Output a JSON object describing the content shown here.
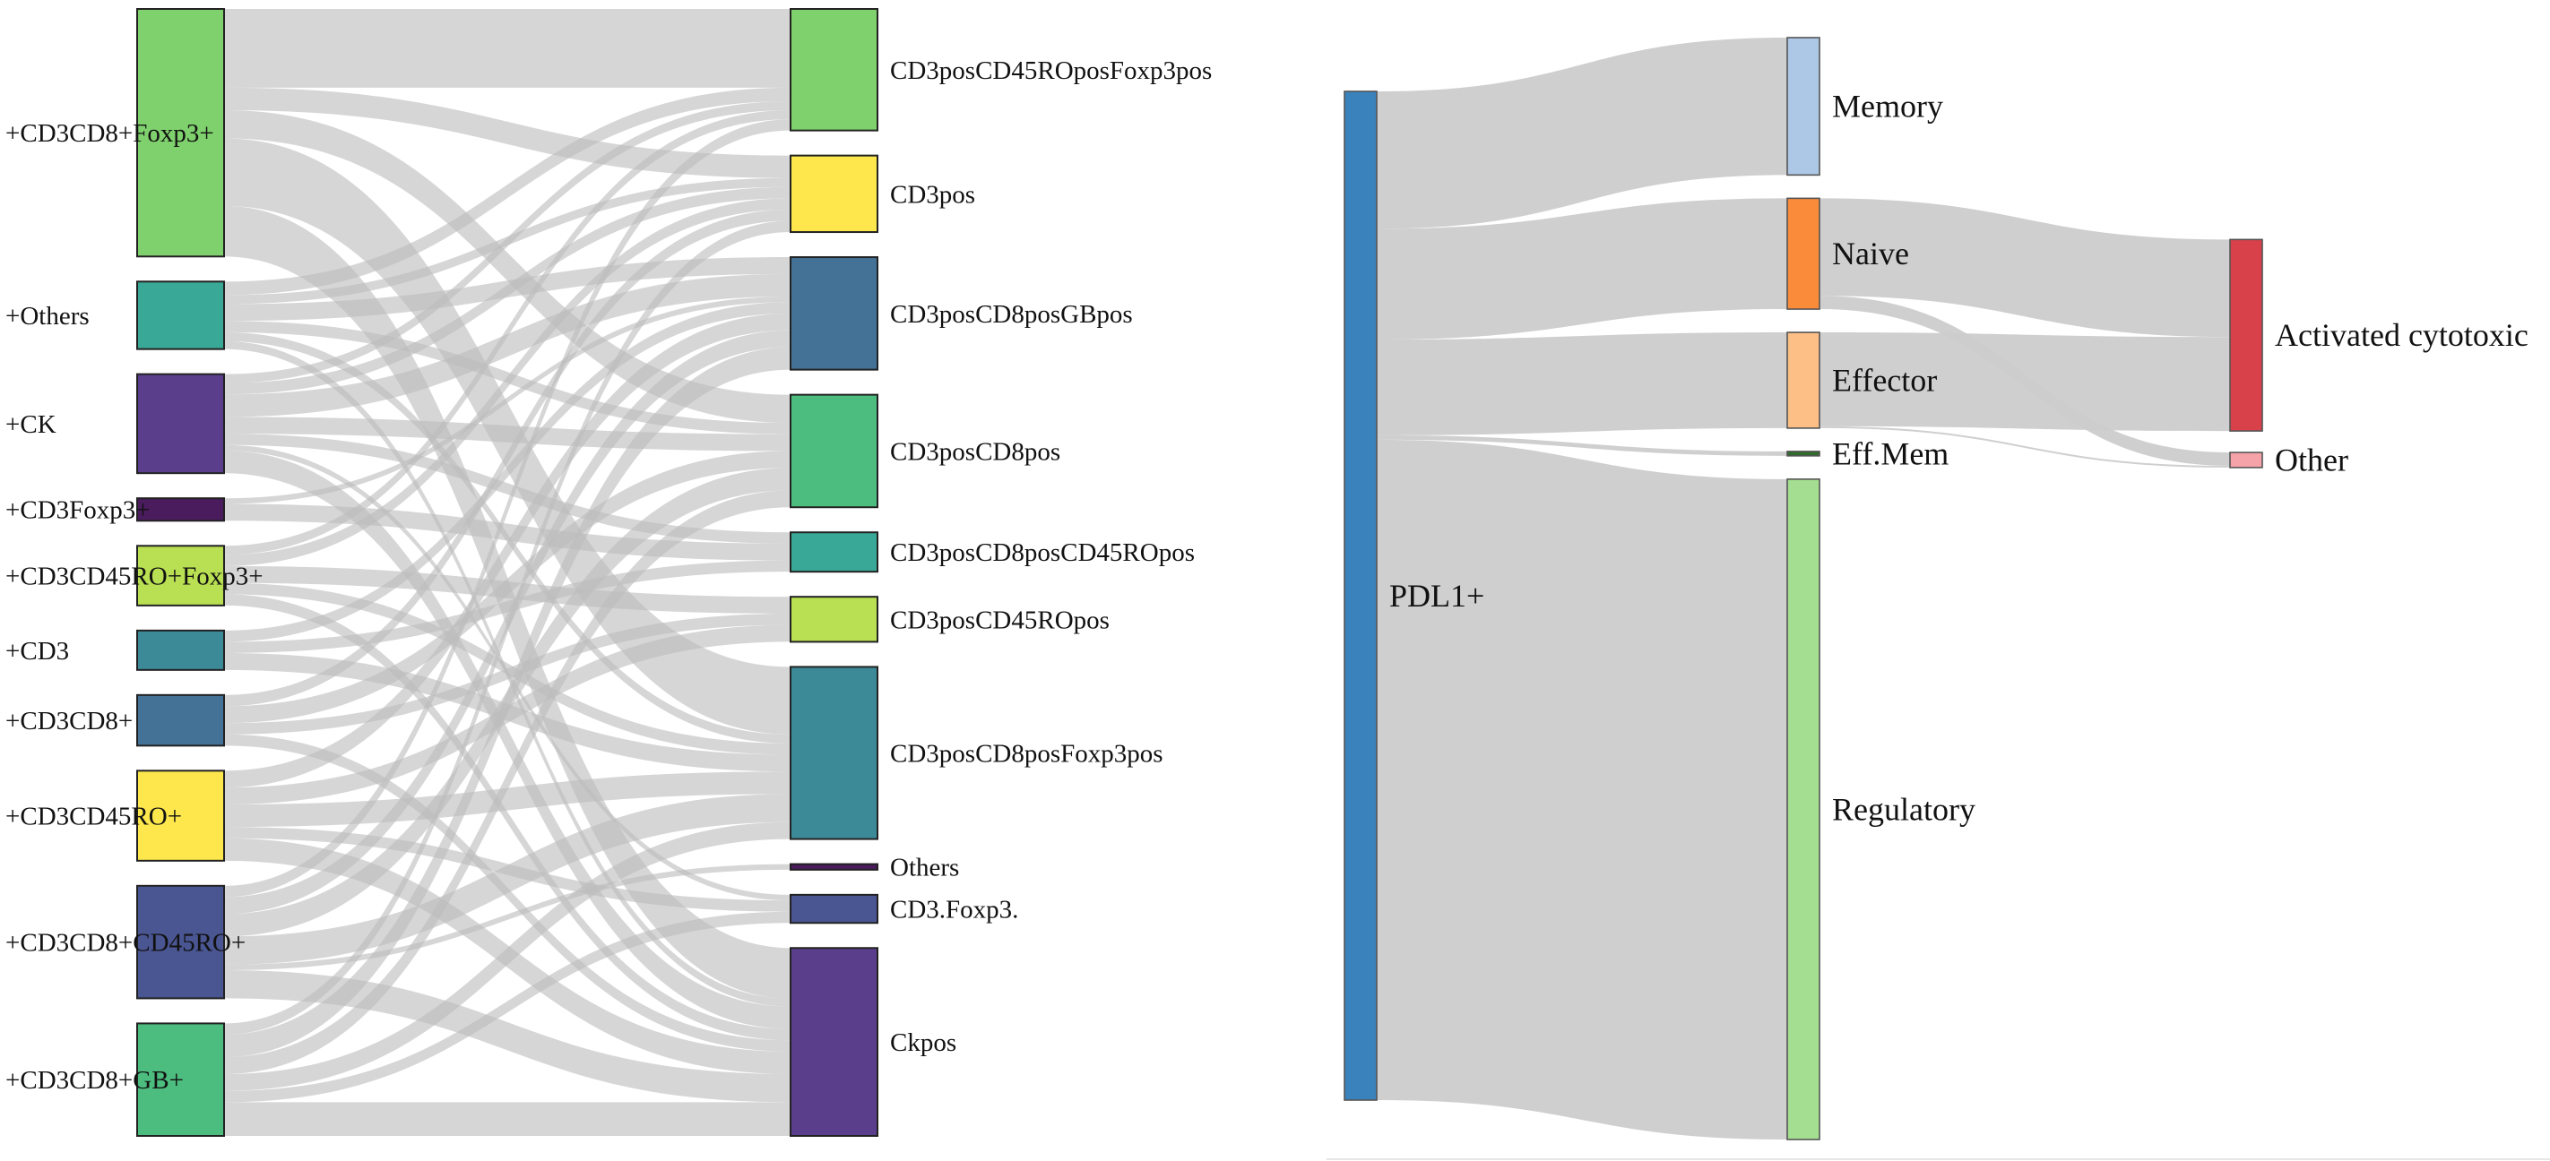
{
  "left_sankey": {
    "link_color": "#bdbdbd",
    "sources": [
      {
        "id": "s_foxp3",
        "label": "+CD3CD8+Foxp3+",
        "color": "#7fd16d"
      },
      {
        "id": "s_others",
        "label": "+Others",
        "color": "#3aa896"
      },
      {
        "id": "s_ck",
        "label": "+CK",
        "color": "#5b3e8b"
      },
      {
        "id": "s_cd3foxp3",
        "label": "+CD3Foxp3+",
        "color": "#4a1c5e"
      },
      {
        "id": "s_cd45foxp3",
        "label": "+CD3CD45RO+Foxp3+",
        "color": "#b9df52"
      },
      {
        "id": "s_cd3",
        "label": "+CD3",
        "color": "#3c8a98"
      },
      {
        "id": "s_cd3cd8",
        "label": "+CD3CD8+",
        "color": "#447296"
      },
      {
        "id": "s_cd3cd45",
        "label": "+CD3CD45RO+",
        "color": "#fde74c"
      },
      {
        "id": "s_cd8cd45",
        "label": "+CD3CD8+CD45RO+",
        "color": "#4a5692"
      },
      {
        "id": "s_gb",
        "label": "+CD3CD8+GB+",
        "color": "#4cbd7f"
      }
    ],
    "targets": [
      {
        "id": "t_cd45foxp3",
        "label": "CD3posCD45ROposFoxp3pos",
        "color": "#7fd16d"
      },
      {
        "id": "t_cd3",
        "label": "CD3pos",
        "color": "#fde74c"
      },
      {
        "id": "t_gb",
        "label": "CD3posCD8posGBpos",
        "color": "#447296"
      },
      {
        "id": "t_cd8",
        "label": "CD3posCD8pos",
        "color": "#4cbd7f"
      },
      {
        "id": "t_cd8cd45",
        "label": "CD3posCD8posCD45ROpos",
        "color": "#3aa896"
      },
      {
        "id": "t_cd45",
        "label": "CD3posCD45ROpos",
        "color": "#b9df52"
      },
      {
        "id": "t_cd8foxp3",
        "label": "CD3posCD8posFoxp3pos",
        "color": "#3c8a98"
      },
      {
        "id": "t_others",
        "label": "Others",
        "color": "#4a1c5e"
      },
      {
        "id": "t_foxp3",
        "label": "CD3.Foxp3.",
        "color": "#4a5692"
      },
      {
        "id": "t_ck",
        "label": "Ckpos",
        "color": "#5b3e8b"
      }
    ],
    "links": [
      {
        "source": "s_foxp3",
        "target": "t_cd45foxp3",
        "value": 70
      },
      {
        "source": "s_foxp3",
        "target": "t_cd3",
        "value": 20
      },
      {
        "source": "s_foxp3",
        "target": "t_cd8",
        "value": 25
      },
      {
        "source": "s_foxp3",
        "target": "t_cd8foxp3",
        "value": 60
      },
      {
        "source": "s_foxp3",
        "target": "t_ck",
        "value": 45
      },
      {
        "source": "s_others",
        "target": "t_cd45foxp3",
        "value": 12
      },
      {
        "source": "s_others",
        "target": "t_cd3",
        "value": 8
      },
      {
        "source": "s_others",
        "target": "t_gb",
        "value": 15
      },
      {
        "source": "s_others",
        "target": "t_cd8",
        "value": 10
      },
      {
        "source": "s_others",
        "target": "t_cd8foxp3",
        "value": 8
      },
      {
        "source": "s_others",
        "target": "t_ck",
        "value": 7
      },
      {
        "source": "s_ck",
        "target": "t_cd45foxp3",
        "value": 8
      },
      {
        "source": "s_ck",
        "target": "t_cd3",
        "value": 10
      },
      {
        "source": "s_ck",
        "target": "t_gb",
        "value": 20
      },
      {
        "source": "s_ck",
        "target": "t_cd8",
        "value": 15
      },
      {
        "source": "s_ck",
        "target": "t_cd8cd45",
        "value": 10
      },
      {
        "source": "s_ck",
        "target": "t_ck",
        "value": 20
      },
      {
        "source": "s_ck",
        "target": "t_foxp3",
        "value": 5
      },
      {
        "source": "s_cd3foxp3",
        "target": "t_gb",
        "value": 5
      },
      {
        "source": "s_cd3foxp3",
        "target": "t_cd8cd45",
        "value": 15
      },
      {
        "source": "s_cd45foxp3",
        "target": "t_cd45foxp3",
        "value": 8
      },
      {
        "source": "s_cd45foxp3",
        "target": "t_cd3",
        "value": 10
      },
      {
        "source": "s_cd45foxp3",
        "target": "t_cd45",
        "value": 15
      },
      {
        "source": "s_cd45foxp3",
        "target": "t_cd8foxp3",
        "value": 10
      },
      {
        "source": "s_cd45foxp3",
        "target": "t_ck",
        "value": 10
      },
      {
        "source": "s_cd3",
        "target": "t_gb",
        "value": 10
      },
      {
        "source": "s_cd3",
        "target": "t_cd8cd45",
        "value": 10
      },
      {
        "source": "s_cd3",
        "target": "t_cd8foxp3",
        "value": 15
      },
      {
        "source": "s_cd3cd8",
        "target": "t_cd3",
        "value": 10
      },
      {
        "source": "s_cd3cd8",
        "target": "t_cd8",
        "value": 15
      },
      {
        "source": "s_cd3cd8",
        "target": "t_cd45",
        "value": 10
      },
      {
        "source": "s_cd3cd8",
        "target": "t_ck",
        "value": 10
      },
      {
        "source": "s_cd3cd45",
        "target": "t_gb",
        "value": 15
      },
      {
        "source": "s_cd3cd45",
        "target": "t_cd45",
        "value": 15
      },
      {
        "source": "s_cd3cd45",
        "target": "t_cd8foxp3",
        "value": 20
      },
      {
        "source": "s_cd3cd45",
        "target": "t_foxp3",
        "value": 10
      },
      {
        "source": "s_cd3cd45",
        "target": "t_ck",
        "value": 20
      },
      {
        "source": "s_cd8cd45",
        "target": "t_cd45foxp3",
        "value": 10
      },
      {
        "source": "s_cd8cd45",
        "target": "t_gb",
        "value": 15
      },
      {
        "source": "s_cd8cd45",
        "target": "t_cd8",
        "value": 20
      },
      {
        "source": "s_cd8cd45",
        "target": "t_cd8foxp3",
        "value": 25
      },
      {
        "source": "s_cd8cd45",
        "target": "t_others",
        "value": 5
      },
      {
        "source": "s_cd8cd45",
        "target": "t_ck",
        "value": 25
      },
      {
        "source": "s_gb",
        "target": "t_cd3",
        "value": 10
      },
      {
        "source": "s_gb",
        "target": "t_gb",
        "value": 20
      },
      {
        "source": "s_gb",
        "target": "t_cd8",
        "value": 15
      },
      {
        "source": "s_gb",
        "target": "t_cd8foxp3",
        "value": 15
      },
      {
        "source": "s_gb",
        "target": "t_foxp3",
        "value": 10
      },
      {
        "source": "s_gb",
        "target": "t_ck",
        "value": 30
      }
    ]
  },
  "right_sankey": {
    "link_color": "#cccccc",
    "nodes": [
      {
        "id": "pdl1",
        "label": "PDL1+",
        "color": "#3a82bb"
      },
      {
        "id": "memory",
        "label": "Memory",
        "color": "#adc7e6"
      },
      {
        "id": "naive",
        "label": "Naive",
        "color": "#f98b3a"
      },
      {
        "id": "effector",
        "label": "Effector",
        "color": "#fdbf86"
      },
      {
        "id": "effmem",
        "label": "Eff.Mem",
        "color": "#2f6b2a"
      },
      {
        "id": "regulatory",
        "label": "Regulatory",
        "color": "#a4de90"
      },
      {
        "id": "activated",
        "label": "Activated cytotoxic",
        "color": "#d8404a"
      },
      {
        "id": "other",
        "label": "Other",
        "color": "#f5a3a8"
      }
    ],
    "links": [
      {
        "source": "pdl1",
        "target": "memory",
        "value": 155
      },
      {
        "source": "pdl1",
        "target": "naive",
        "value": 125
      },
      {
        "source": "pdl1",
        "target": "effector",
        "value": 108
      },
      {
        "source": "pdl1",
        "target": "effmem",
        "value": 5
      },
      {
        "source": "pdl1",
        "target": "regulatory",
        "value": 745
      },
      {
        "source": "naive",
        "target": "activated",
        "value": 110
      },
      {
        "source": "naive",
        "target": "other",
        "value": 15
      },
      {
        "source": "effector",
        "target": "activated",
        "value": 106
      },
      {
        "source": "effector",
        "target": "other",
        "value": 2
      }
    ]
  }
}
